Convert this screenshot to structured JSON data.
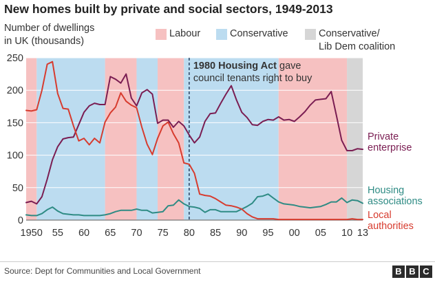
{
  "chart_data": {
    "type": "line",
    "title": "New homes built by private and social sectors, 1949-2013",
    "ylabel": "Number of dwellings\nin UK (thousands)",
    "ylim": [
      0,
      250
    ],
    "xlim": [
      1949,
      2013
    ],
    "yticks": [
      0,
      50,
      100,
      150,
      200,
      250
    ],
    "xticks": [
      {
        "value": 1950,
        "label": "1950"
      },
      {
        "value": 1955,
        "label": "55"
      },
      {
        "value": 1960,
        "label": "60"
      },
      {
        "value": 1965,
        "label": "65"
      },
      {
        "value": 1970,
        "label": "70"
      },
      {
        "value": 1975,
        "label": "75"
      },
      {
        "value": 1980,
        "label": "80"
      },
      {
        "value": 1985,
        "label": "85"
      },
      {
        "value": 1990,
        "label": "90"
      },
      {
        "value": 1995,
        "label": "95"
      },
      {
        "value": 2000,
        "label": "00"
      },
      {
        "value": 2005,
        "label": "05"
      },
      {
        "value": 2010,
        "label": "10"
      },
      {
        "value": 2013,
        "label": "13"
      }
    ],
    "grid": true,
    "periods": [
      {
        "party": "Labour",
        "start": 1949,
        "end": 1951
      },
      {
        "party": "Conservative",
        "start": 1951,
        "end": 1964
      },
      {
        "party": "Labour",
        "start": 1964,
        "end": 1970
      },
      {
        "party": "Conservative",
        "start": 1970,
        "end": 1974
      },
      {
        "party": "Labour",
        "start": 1974,
        "end": 1979
      },
      {
        "party": "Conservative",
        "start": 1979,
        "end": 1997
      },
      {
        "party": "Labour",
        "start": 1997,
        "end": 2010
      },
      {
        "party": "Coalition",
        "start": 2010,
        "end": 2013
      }
    ],
    "legend": [
      {
        "key": "Labour",
        "label": "Labour",
        "color": "#f6c1c1"
      },
      {
        "key": "Conservative",
        "label": "Conservative",
        "color": "#bcdcf0"
      },
      {
        "key": "Coalition",
        "label": "Conservative/\nLib Dem coalition",
        "color": "#d6d6d6"
      }
    ],
    "annotation": {
      "year": 1980,
      "bold": "1980 Housing Act",
      "rest1": " gave",
      "line2": "council tenants right to buy"
    },
    "x": [
      1949,
      1950,
      1951,
      1952,
      1953,
      1954,
      1955,
      1956,
      1957,
      1958,
      1959,
      1960,
      1961,
      1962,
      1963,
      1964,
      1965,
      1966,
      1967,
      1968,
      1969,
      1970,
      1971,
      1972,
      1973,
      1974,
      1975,
      1976,
      1977,
      1978,
      1979,
      1980,
      1981,
      1982,
      1983,
      1984,
      1985,
      1986,
      1987,
      1988,
      1989,
      1990,
      1991,
      1992,
      1993,
      1994,
      1995,
      1996,
      1997,
      1998,
      1999,
      2000,
      2001,
      2002,
      2003,
      2004,
      2005,
      2006,
      2007,
      2008,
      2009,
      2010,
      2011,
      2012,
      2013
    ],
    "series": [
      {
        "name": "Private\nenterprise",
        "color": "#7a1d52",
        "values": [
          27,
          29,
          25,
          36,
          63,
          93,
          113,
          125,
          127,
          128,
          147,
          166,
          176,
          180,
          178,
          178,
          221,
          217,
          211,
          225,
          188,
          176,
          196,
          201,
          194,
          149,
          154,
          154,
          143,
          152,
          145,
          131,
          119,
          128,
          152,
          164,
          165,
          180,
          194,
          207,
          185,
          166,
          158,
          147,
          146,
          152,
          155,
          154,
          159,
          154,
          155,
          152,
          159,
          167,
          177,
          185,
          186,
          187,
          198,
          161,
          123,
          107,
          107,
          110,
          109
        ]
      },
      {
        "name": "Housing\nassociations",
        "color": "#2e8b84",
        "values": [
          8,
          7,
          7,
          10,
          16,
          20,
          14,
          10,
          9,
          8,
          8,
          7,
          7,
          7,
          7,
          8,
          10,
          13,
          15,
          15,
          15,
          17,
          15,
          15,
          11,
          12,
          13,
          22,
          23,
          31,
          25,
          21,
          20,
          18,
          12,
          16,
          16,
          13,
          13,
          13,
          13,
          17,
          21,
          26,
          36,
          37,
          40,
          34,
          28,
          25,
          24,
          23,
          21,
          20,
          19,
          20,
          21,
          24,
          28,
          28,
          34,
          27,
          31,
          30,
          26
        ]
      },
      {
        "name": "Local\nauthorities",
        "color": "#d73b2e",
        "values": [
          169,
          168,
          170,
          200,
          240,
          244,
          195,
          172,
          171,
          145,
          122,
          126,
          116,
          126,
          119,
          151,
          165,
          174,
          196,
          183,
          177,
          173,
          143,
          117,
          101,
          126,
          145,
          151,
          133,
          119,
          88,
          86,
          72,
          40,
          38,
          37,
          33,
          28,
          23,
          22,
          20,
          17,
          10,
          5,
          2,
          2,
          2,
          2,
          1,
          1,
          1,
          1,
          1,
          1,
          1,
          1,
          1,
          1,
          1,
          1,
          1,
          1,
          2,
          1,
          1
        ]
      }
    ],
    "series_label_lines": [
      {
        "key": "private",
        "lines": [
          "Private",
          "enterprise"
        ]
      },
      {
        "key": "ha",
        "lines": [
          "Housing",
          "associations"
        ]
      },
      {
        "key": "la",
        "lines": [
          "Local",
          "authorities"
        ]
      }
    ]
  },
  "header": {
    "title": "New homes built by private and social sectors, 1949-2013",
    "ylabel_line1": "Number of dwellings",
    "ylabel_line2": "in UK (thousands)"
  },
  "legend_labels": {
    "labour": "Labour",
    "conservative": "Conservative",
    "coalition_line1": "Conservative/",
    "coalition_line2": "Lib Dem coalition"
  },
  "footer": {
    "source": "Source: Dept for Communities and Local Government",
    "logo_letters": [
      "B",
      "B",
      "C"
    ]
  }
}
